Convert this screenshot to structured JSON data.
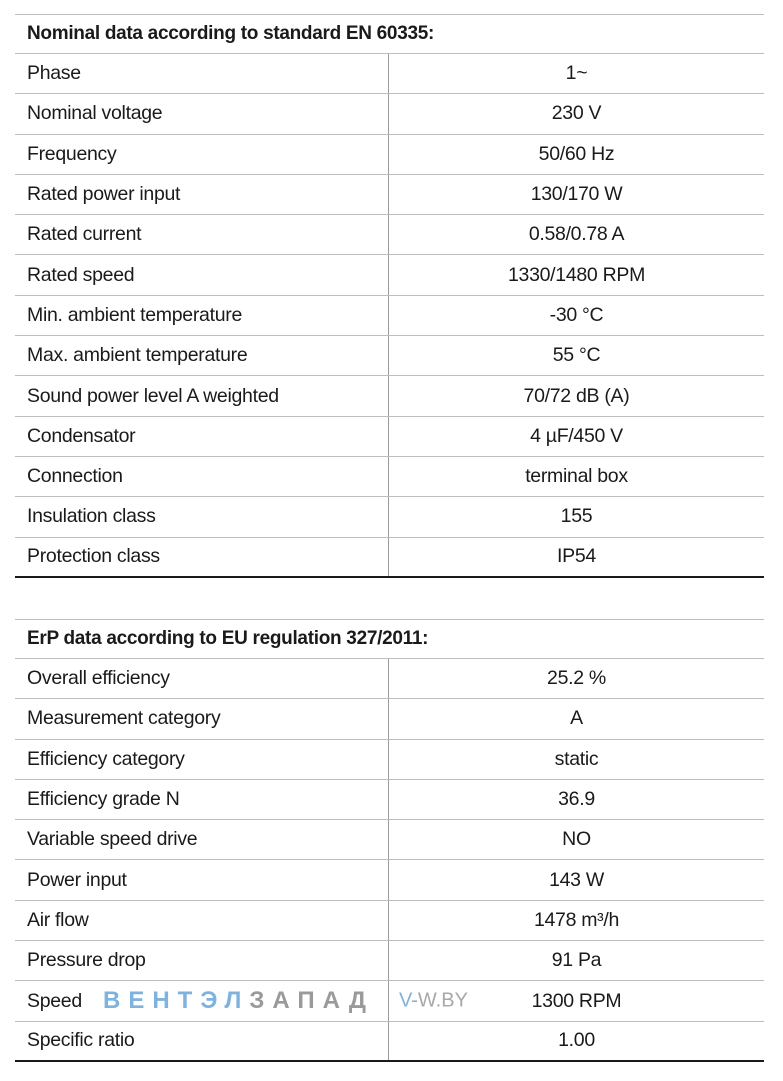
{
  "nominal": {
    "title": "Nominal data according to standard EN 60335:",
    "rows": [
      {
        "label": "Phase",
        "value": "1~"
      },
      {
        "label": "Nominal voltage",
        "value": "230 V"
      },
      {
        "label": "Frequency",
        "value": "50/60 Hz"
      },
      {
        "label": "Rated power input",
        "value": "130/170 W"
      },
      {
        "label": "Rated current",
        "value": "0.58/0.78 A"
      },
      {
        "label": "Rated speed",
        "value": "1330/1480 RPM"
      },
      {
        "label": "Min. ambient temperature",
        "value": "-30 °C"
      },
      {
        "label": "Max. ambient temperature",
        "value": "55 °C"
      },
      {
        "label": "Sound power level A weighted",
        "value": "70/72 dB (A)"
      },
      {
        "label": "Condensator",
        "value": "4 µF/450 V"
      },
      {
        "label": "Connection",
        "value": "terminal box"
      },
      {
        "label": "Insulation class",
        "value": "155"
      },
      {
        "label": "Protection class",
        "value": "IP54"
      }
    ]
  },
  "erp": {
    "title": "ErP data according to EU regulation 327/2011:",
    "rows": [
      {
        "label": "Overall efficiency",
        "value": "25.2 %"
      },
      {
        "label": "Measurement category",
        "value": "A"
      },
      {
        "label": "Efficiency category",
        "value": "static"
      },
      {
        "label": "Efficiency grade N",
        "value": "36.9"
      },
      {
        "label": "Variable speed drive",
        "value": "NO"
      },
      {
        "label": "Power input",
        "value": "143 W"
      },
      {
        "label": "Air flow",
        "value": "1478 m³/h"
      },
      {
        "label": "Pressure drop",
        "value": "91 Pa"
      },
      {
        "label": "Speed",
        "value": "1300 RPM"
      },
      {
        "label": "Specific ratio",
        "value": "1.00"
      }
    ]
  },
  "watermark": {
    "brand_part1": "ВЕНТЭЛ",
    "brand_part2": "ЗАПАД",
    "site_v": "V",
    "site_rest": "-W.BY",
    "color_blue": "#7fb2dc",
    "color_gray": "#9a9a9a"
  }
}
